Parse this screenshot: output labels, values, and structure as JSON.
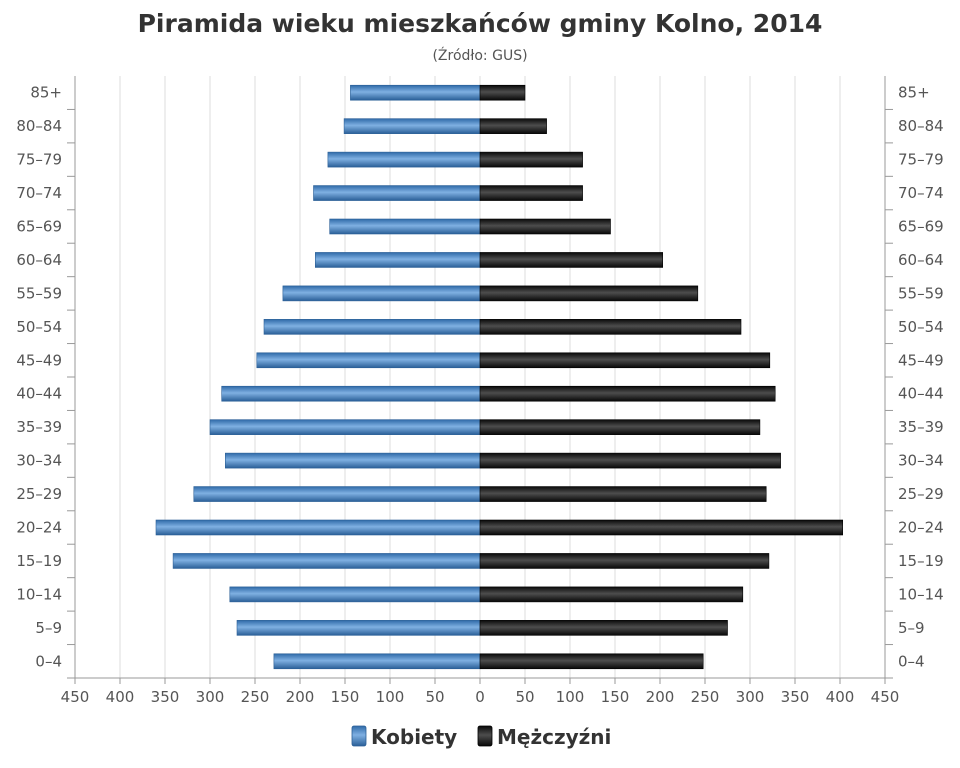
{
  "chart_data": {
    "type": "bar",
    "orientation": "horizontal-pyramid",
    "title": "Piramida wieku mieszkańców gminy Kolno, 2014",
    "subtitle": "(Źródło: GUS)",
    "categories": [
      "0–4",
      "5–9",
      "10–14",
      "15–19",
      "20–24",
      "25–29",
      "30–34",
      "35–39",
      "40–44",
      "45–49",
      "50–54",
      "55–59",
      "60–64",
      "65–69",
      "70–74",
      "75–79",
      "80–84",
      "85+"
    ],
    "xlim": [
      -450,
      450
    ],
    "x_ticks": [
      450,
      400,
      350,
      300,
      250,
      200,
      150,
      100,
      50,
      0,
      50,
      100,
      150,
      200,
      250,
      300,
      350,
      400,
      450
    ],
    "grid": true,
    "legend_position": "bottom",
    "series": [
      {
        "name": "Kobiety",
        "color": "#4a86c5",
        "side": "left",
        "values": [
          229,
          270,
          278,
          341,
          360,
          318,
          283,
          300,
          287,
          248,
          240,
          219,
          183,
          167,
          185,
          169,
          151,
          144
        ]
      },
      {
        "name": "Mężczyźni",
        "color": "#1e1e1e",
        "side": "right",
        "values": [
          248,
          275,
          292,
          321,
          403,
          318,
          334,
          311,
          328,
          322,
          290,
          242,
          203,
          145,
          114,
          114,
          74,
          50
        ]
      }
    ]
  }
}
